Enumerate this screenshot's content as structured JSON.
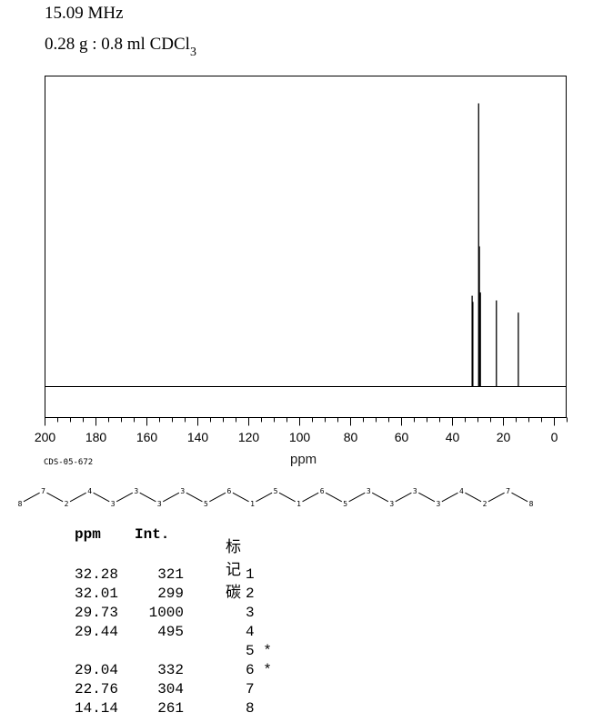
{
  "header": {
    "frequency": "15.09 MHz",
    "sample_main": "0.28 g : 0.8 ml CDCl",
    "sample_sub": "3"
  },
  "chart_data": {
    "type": "line",
    "xlabel": "ppm",
    "xlim": [
      200,
      -5
    ],
    "x_ticks": [
      200,
      180,
      160,
      140,
      120,
      100,
      80,
      60,
      40,
      20,
      0
    ],
    "peaks": [
      {
        "ppm": 32.28,
        "intensity": 321
      },
      {
        "ppm": 32.01,
        "intensity": 299
      },
      {
        "ppm": 29.73,
        "intensity": 1000
      },
      {
        "ppm": 29.44,
        "intensity": 495
      },
      {
        "ppm": 29.04,
        "intensity": 332
      },
      {
        "ppm": 22.76,
        "intensity": 304
      },
      {
        "ppm": 14.14,
        "intensity": 261
      }
    ]
  },
  "code_label": "CDS-05-672",
  "structure": {
    "atom_labels": [
      "8",
      "7",
      "2",
      "4",
      "3",
      "3",
      "3",
      "3",
      "5",
      "6",
      "1",
      "5",
      "1",
      "6",
      "5",
      "3",
      "3",
      "3",
      "3",
      "4",
      "2",
      "7",
      "8"
    ]
  },
  "table": {
    "headers": {
      "ppm": "ppm",
      "int": "Int.",
      "assign": "标记碳"
    },
    "rows": [
      {
        "ppm": "32.28",
        "int": "321",
        "assign": "1"
      },
      {
        "ppm": "32.01",
        "int": "299",
        "assign": "2"
      },
      {
        "ppm": "29.73",
        "int": "1000",
        "assign": "3"
      },
      {
        "ppm": "29.44",
        "int": "495",
        "assign": "4"
      },
      {
        "ppm": "",
        "int": "",
        "assign": "5 *"
      },
      {
        "ppm": "29.04",
        "int": "332",
        "assign": "6 *"
      },
      {
        "ppm": "22.76",
        "int": "304",
        "assign": "7"
      },
      {
        "ppm": "14.14",
        "int": "261",
        "assign": "8"
      }
    ]
  }
}
